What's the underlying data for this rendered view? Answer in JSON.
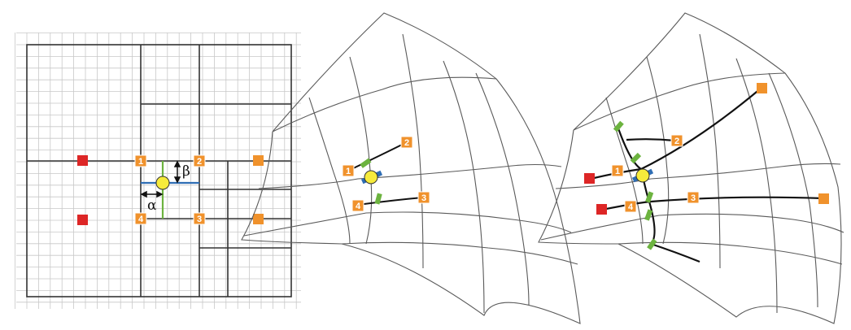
{
  "panel_left": {
    "corner_labels": [
      "1",
      "2",
      "3",
      "4"
    ],
    "alpha": "α",
    "beta": "β"
  },
  "panel_middle": {
    "corner_labels": [
      "1",
      "2",
      "3",
      "4"
    ]
  },
  "panel_right": {
    "corner_labels": [
      "1",
      "2",
      "3",
      "4"
    ]
  },
  "colors": {
    "node_orange": "#F0922C",
    "node_red": "#DD2626",
    "marker_green": "#6CB33F",
    "marker_blue": "#2E6DB4",
    "sample_point": "#F6EB3C",
    "grid_fine": "#c8c8c8",
    "grid_cell": "#333333",
    "mesh_line": "#5a5a5a"
  }
}
